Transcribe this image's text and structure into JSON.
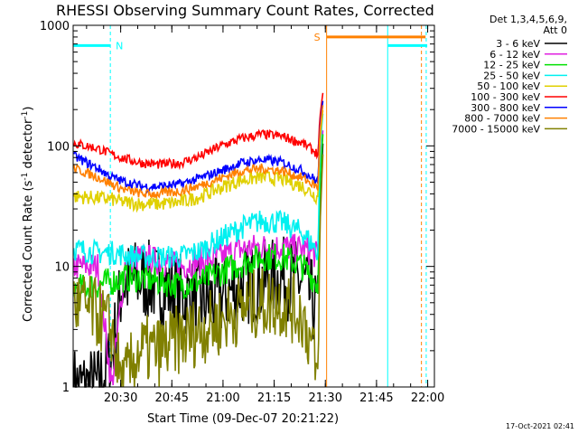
{
  "chart_data": {
    "type": "line",
    "title": "RHESSI Observing Summary Count Rates, Corrected",
    "xlabel": "Start Time (09-Dec-07 20:21:22)",
    "ylabel_pre": "Corrected Count Rate (s",
    "ylabel_sup1": "-1",
    "ylabel_mid": " detector",
    "ylabel_sup2": "-1",
    "ylabel_post": ")",
    "yscale": "log",
    "ylim": [
      1,
      1000
    ],
    "xlim_minutes": [
      -5.3,
      100.6
    ],
    "x_tick_labels": [
      "20:30",
      "20:45",
      "21:00",
      "21:15",
      "21:30",
      "21:45",
      "22:00"
    ],
    "x_tick_minutes": [
      8.63,
      23.63,
      38.63,
      53.63,
      68.63,
      83.63,
      98.63
    ],
    "y_tick_labels": [
      "1",
      "10",
      "100",
      "1000"
    ],
    "y_tick_values": [
      1,
      10,
      100,
      1000
    ],
    "detector_info": "Det 1,3,4,5,6,9,",
    "attenuator_info": "Att 0",
    "timestamp": "17-Oct-2021 02:41",
    "series": [
      {
        "name": "3 - 6 keV",
        "color": "#000000",
        "x": [
          -5,
          2,
          6,
          9,
          14,
          20,
          26,
          32,
          38,
          44,
          50,
          56,
          62,
          65,
          66.5,
          67,
          68
        ],
        "y": [
          1.0,
          1.0,
          1.7,
          7.0,
          8.0,
          7.0,
          6.0,
          5.0,
          5.5,
          7.0,
          7.5,
          8.0,
          7.5,
          5.0,
          4.0,
          30,
          120
        ]
      },
      {
        "name": "6 - 12 keV",
        "color": "#e020e0",
        "x": [
          -5,
          2,
          6,
          10,
          15,
          20,
          26,
          32,
          38,
          44,
          50,
          56,
          62,
          65,
          66.5,
          67,
          68
        ],
        "y": [
          10,
          10,
          1.0,
          11,
          12,
          11,
          10,
          11,
          12,
          14,
          14.5,
          14.5,
          14,
          13,
          12,
          50,
          150
        ]
      },
      {
        "name": "12 - 25 keV",
        "color": "#00e000",
        "x": [
          -5,
          2,
          6,
          10,
          15,
          20,
          26,
          32,
          38,
          44,
          50,
          56,
          62,
          65,
          66.5,
          67,
          68
        ],
        "y": [
          6.5,
          7.0,
          7.5,
          8.0,
          8.0,
          7.5,
          7.0,
          7.5,
          9.0,
          10.5,
          12,
          12,
          10,
          8.0,
          7.0,
          45,
          140
        ]
      },
      {
        "name": "25 - 50 keV",
        "color": "#00f0f0",
        "x": [
          -5,
          2,
          6,
          10,
          15,
          20,
          26,
          32,
          38,
          44,
          50,
          56,
          62,
          65,
          66.5,
          67,
          68
        ],
        "y": [
          14,
          13,
          13,
          12.5,
          12,
          12,
          12,
          13.5,
          17,
          21,
          24,
          23,
          19,
          15,
          13,
          90,
          200
        ]
      },
      {
        "name": "50 - 100 keV",
        "color": "#e0d000",
        "x": [
          -5,
          2,
          6,
          10,
          15,
          20,
          26,
          32,
          38,
          44,
          50,
          56,
          62,
          65,
          66.5,
          67,
          68
        ],
        "y": [
          38,
          37,
          36,
          34,
          33,
          33,
          34,
          38,
          45,
          52,
          55,
          53,
          46,
          40,
          37,
          110,
          210
        ]
      },
      {
        "name": "100 - 300 keV",
        "color": "#ff0000",
        "x": [
          -5,
          2,
          6,
          10,
          15,
          20,
          26,
          32,
          38,
          44,
          50,
          56,
          62,
          65,
          66.5,
          67,
          68
        ],
        "y": [
          105,
          95,
          85,
          78,
          72,
          70,
          72,
          82,
          100,
          115,
          125,
          120,
          105,
          92,
          85,
          170,
          290
        ]
      },
      {
        "name": "300 - 800 keV",
        "color": "#0000ff",
        "x": [
          -5,
          2,
          6,
          10,
          15,
          20,
          26,
          32,
          38,
          44,
          50,
          56,
          62,
          65,
          66.5,
          67,
          68
        ],
        "y": [
          82,
          65,
          55,
          50,
          46,
          46,
          48,
          54,
          62,
          72,
          77,
          73,
          62,
          54,
          50,
          140,
          250
        ]
      },
      {
        "name": "800 - 7000 keV",
        "color": "#ff8000",
        "x": [
          -5,
          2,
          6,
          10,
          15,
          20,
          26,
          32,
          38,
          44,
          50,
          56,
          62,
          65,
          66.5,
          67,
          68
        ],
        "y": [
          65,
          55,
          48,
          43,
          40,
          40,
          42,
          47,
          54,
          62,
          65,
          62,
          54,
          48,
          45,
          130,
          230
        ]
      },
      {
        "name": "7000 - 15000 keV",
        "color": "#808000",
        "x": [
          -5,
          2,
          6,
          9,
          14,
          20,
          26,
          32,
          38,
          44,
          50,
          56,
          62,
          65,
          66.5,
          67,
          68
        ],
        "y": [
          5.0,
          4.0,
          3.0,
          1.0,
          2.0,
          2.0,
          2.5,
          3.0,
          3.5,
          4.5,
          5.0,
          5.0,
          4.0,
          2.0,
          1.0,
          20,
          100
        ]
      }
    ],
    "flags": [
      {
        "label": "N",
        "color": "#00ffff",
        "x_start": -5.3,
        "x_end": 5.6,
        "level": 680
      },
      {
        "label": "S",
        "color": "#ff8000",
        "x_start": 69.0,
        "x_end": 98.0,
        "level": 800
      },
      {
        "label": "",
        "color": "#00ffff",
        "x_start": 87.0,
        "x_end": 98.5,
        "level": 680
      }
    ],
    "markers": [
      {
        "x": 5.6,
        "color": "#00ffff",
        "style": "dashed"
      },
      {
        "x": 69.0,
        "color": "#ff8000",
        "style": "solid"
      },
      {
        "x": 86.9,
        "color": "#00ffff",
        "style": "solid"
      },
      {
        "x": 96.8,
        "color": "#ff8000",
        "style": "dashed"
      },
      {
        "x": 98.2,
        "color": "#00ffff",
        "style": "dashed"
      }
    ]
  }
}
